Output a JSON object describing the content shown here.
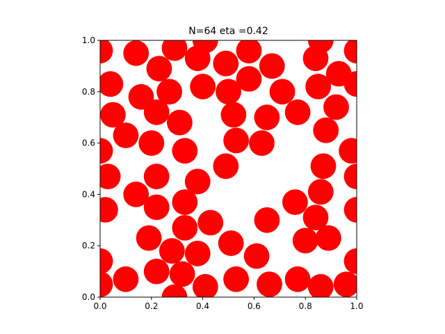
{
  "chart_data": {
    "type": "scatter",
    "title": "N=64 eta =0.42",
    "xlabel": "",
    "ylabel": "",
    "xlim": [
      0.0,
      1.0
    ],
    "ylim": [
      0.0,
      1.0
    ],
    "grid": false,
    "marker_shape": "disk",
    "marker_diameter_data_units": 0.1,
    "x_ticks": [
      "0.0",
      "0.2",
      "0.4",
      "0.6",
      "0.8",
      "1.0"
    ],
    "y_ticks": [
      "0.0",
      "0.2",
      "0.4",
      "0.6",
      "0.8",
      "1.0"
    ],
    "series": [
      {
        "color": "#ff0000",
        "points": [
          [
            0.0,
            0.96
          ],
          [
            0.14,
            0.95
          ],
          [
            0.29,
            0.97
          ],
          [
            0.41,
            1.0
          ],
          [
            0.58,
            0.96
          ],
          [
            0.86,
            1.0
          ],
          [
            1.0,
            0.96
          ],
          [
            0.23,
            0.89
          ],
          [
            0.38,
            0.93
          ],
          [
            0.49,
            0.91
          ],
          [
            0.67,
            0.9
          ],
          [
            0.84,
            0.93
          ],
          [
            0.93,
            0.87
          ],
          [
            0.04,
            0.83
          ],
          [
            0.16,
            0.78
          ],
          [
            0.27,
            0.8
          ],
          [
            0.4,
            0.82
          ],
          [
            0.5,
            0.8
          ],
          [
            0.58,
            0.85
          ],
          [
            0.71,
            0.8
          ],
          [
            0.85,
            0.82
          ],
          [
            1.0,
            0.83
          ],
          [
            0.05,
            0.71
          ],
          [
            0.22,
            0.72
          ],
          [
            0.31,
            0.68
          ],
          [
            0.52,
            0.71
          ],
          [
            0.65,
            0.7
          ],
          [
            0.77,
            0.72
          ],
          [
            0.92,
            0.74
          ],
          [
            0.1,
            0.63
          ],
          [
            0.2,
            0.6
          ],
          [
            0.33,
            0.57
          ],
          [
            0.53,
            0.61
          ],
          [
            0.63,
            0.6
          ],
          [
            0.88,
            0.65
          ],
          [
            0.0,
            0.57
          ],
          [
            0.98,
            0.57
          ],
          [
            0.03,
            0.47
          ],
          [
            0.22,
            0.47
          ],
          [
            0.38,
            0.45
          ],
          [
            0.49,
            0.51
          ],
          [
            0.87,
            0.51
          ],
          [
            1.0,
            0.47
          ],
          [
            0.02,
            0.34
          ],
          [
            0.14,
            0.4
          ],
          [
            0.22,
            0.35
          ],
          [
            0.33,
            0.37
          ],
          [
            0.76,
            0.37
          ],
          [
            0.86,
            0.41
          ],
          [
            1.0,
            0.34
          ],
          [
            0.33,
            0.27
          ],
          [
            0.43,
            0.29
          ],
          [
            0.65,
            0.3
          ],
          [
            0.84,
            0.31
          ],
          [
            0.19,
            0.23
          ],
          [
            0.28,
            0.18
          ],
          [
            0.38,
            0.17
          ],
          [
            0.51,
            0.21
          ],
          [
            0.61,
            0.16
          ],
          [
            0.8,
            0.22
          ],
          [
            0.89,
            0.23
          ],
          [
            0.0,
            0.14
          ],
          [
            0.1,
            0.07
          ],
          [
            0.22,
            0.1
          ],
          [
            0.32,
            0.09
          ],
          [
            0.41,
            0.04
          ],
          [
            0.53,
            0.07
          ],
          [
            0.66,
            0.05
          ],
          [
            0.77,
            0.07
          ],
          [
            0.86,
            0.04
          ],
          [
            0.96,
            0.05
          ],
          [
            1.0,
            0.14
          ],
          [
            0.0,
            0.05
          ],
          [
            0.29,
            0.0
          ]
        ]
      }
    ]
  }
}
